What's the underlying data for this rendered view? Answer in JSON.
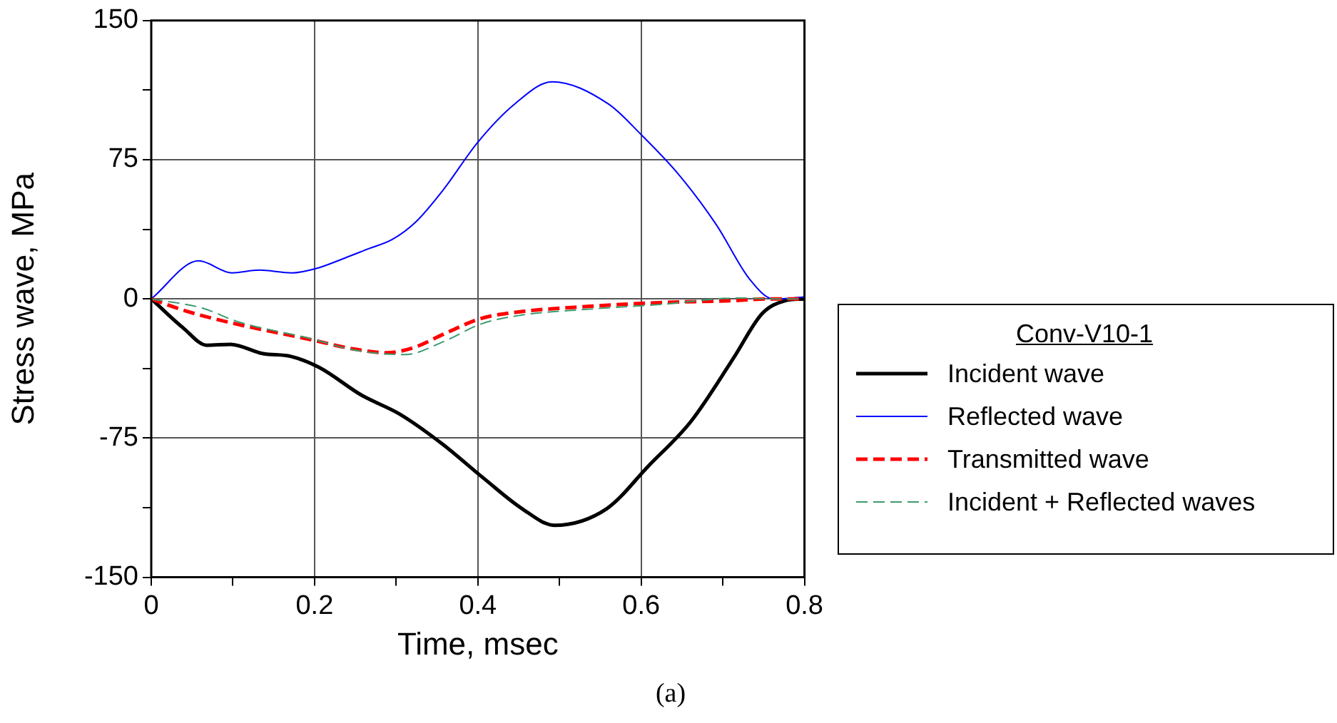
{
  "chart_data": {
    "type": "line",
    "xlabel": "Time, msec",
    "ylabel": "Stress wave, MPa",
    "legend_title": "Conv-V10-1",
    "legend": "right",
    "grid": true,
    "marker": "none",
    "xlim": [
      0,
      0.8
    ],
    "xticks": [
      0,
      {
        "value": 0.1,
        "label": null
      },
      0.2,
      {
        "value": 0.3,
        "label": null
      },
      0.4,
      {
        "value": 0.5,
        "label": null
      },
      0.6,
      {
        "value": 0.7,
        "label": null
      },
      0.8
    ],
    "ylim": [
      -150,
      150
    ],
    "yticks": [
      -150,
      {
        "value": -112.5,
        "label": null
      },
      -75,
      {
        "value": -37.5,
        "label": null
      },
      0,
      {
        "value": 37.5,
        "label": null
      },
      75,
      {
        "value": 112.5,
        "label": null
      },
      150
    ],
    "annotations": [
      "(a)"
    ],
    "series": [
      {
        "name": "Incident wave",
        "color": "#000000",
        "line_style": "solid",
        "x": [
          0,
          0.04,
          0.068,
          0.097,
          0.137,
          0.171,
          0.206,
          0.258,
          0.304,
          0.356,
          0.408,
          0.454,
          0.494,
          0.558,
          0.609,
          0.661,
          0.713,
          0.748,
          0.776,
          0.8
        ],
        "values": [
          0,
          -16,
          -25,
          -24.5,
          -29.5,
          -31,
          -37,
          -52,
          -62,
          -78,
          -97,
          -113,
          -122,
          -113,
          -90,
          -66,
          -32,
          -8,
          -1,
          0
        ]
      },
      {
        "name": "Reflected wave",
        "color": "#0000ff",
        "line_style": "solid",
        "x": [
          0,
          0.058,
          0.099,
          0.132,
          0.172,
          0.203,
          0.237,
          0.266,
          0.295,
          0.324,
          0.358,
          0.4,
          0.445,
          0.491,
          0.56,
          0.6,
          0.646,
          0.692,
          0.733,
          0.762,
          0.8
        ],
        "values": [
          0,
          20.5,
          14,
          15.5,
          14,
          16.5,
          22,
          27,
          32,
          41.5,
          59,
          84.5,
          105,
          117,
          105,
          88.5,
          67,
          40,
          10.5,
          0,
          1
        ]
      },
      {
        "name": "Transmitted wave",
        "color": "#ff0000",
        "line_style": "dashed",
        "x": [
          0,
          0.046,
          0.104,
          0.196,
          0.248,
          0.288,
          0.323,
          0.358,
          0.404,
          0.45,
          0.537,
          0.623,
          0.71,
          0.76,
          0.8
        ],
        "values": [
          0,
          -7,
          -13.5,
          -22,
          -27,
          -29,
          -26,
          -19,
          -10.5,
          -7,
          -4,
          -2,
          -1,
          0,
          0
        ]
      },
      {
        "name": "Incident + Reflected waves",
        "color": "#3c9a6e",
        "line_style": "dashed",
        "x": [
          0,
          0.063,
          0.104,
          0.196,
          0.248,
          0.311,
          0.358,
          0.404,
          0.45,
          0.537,
          0.623,
          0.72,
          0.76,
          0.8
        ],
        "values": [
          0,
          -5,
          -12,
          -21.5,
          -27.5,
          -30,
          -23,
          -13.5,
          -9,
          -5.5,
          -3,
          0.5,
          0,
          0
        ]
      }
    ]
  }
}
